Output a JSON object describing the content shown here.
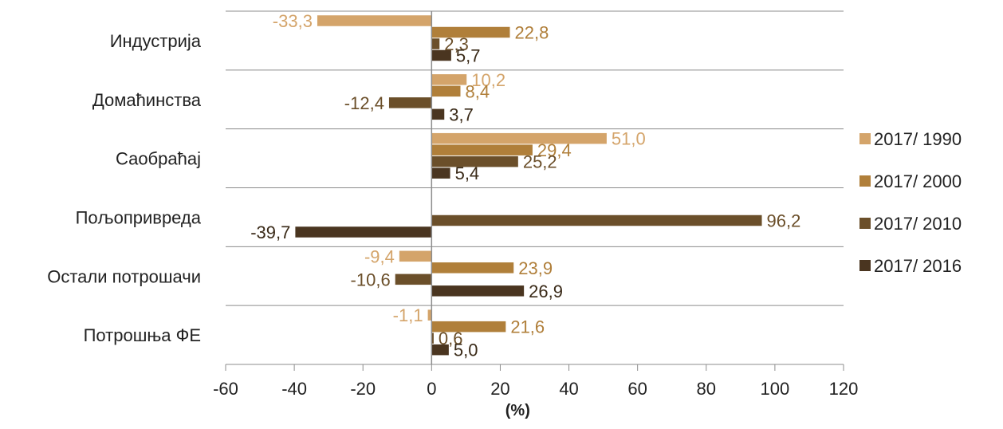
{
  "chart_data": {
    "type": "bar",
    "orientation": "horizontal",
    "categories": [
      "Индустрија",
      "Домаћинства",
      "Саобраћај",
      "Пољопривреда",
      "Остали потрошачи",
      "Потрошња ФЕ"
    ],
    "series": [
      {
        "name": "2017/ 1990",
        "color": "#d4a46a",
        "values": [
          -33.3,
          10.2,
          51.0,
          null,
          -9.4,
          -1.1
        ],
        "labels": [
          "-33,3",
          "10,2",
          "51,0",
          "",
          "-9,4",
          "-1,1"
        ]
      },
      {
        "name": "2017/ 2000",
        "color": "#b07f3a",
        "values": [
          22.8,
          8.4,
          29.4,
          null,
          23.9,
          21.6
        ],
        "labels": [
          "22,8",
          "8,4",
          "29,4",
          "",
          "23,9",
          "21,6"
        ]
      },
      {
        "name": "2017/ 2010",
        "color": "#6b4f2a",
        "values": [
          2.3,
          -12.4,
          25.2,
          96.2,
          -10.6,
          0.6
        ],
        "labels": [
          "2,3",
          "-12,4",
          "25,2",
          "96,2",
          "-10,6",
          "0,6"
        ]
      },
      {
        "name": "2017/ 2016",
        "color": "#4a3520",
        "values": [
          5.7,
          3.7,
          5.4,
          -39.7,
          26.9,
          5.0
        ],
        "labels": [
          "5,7",
          "3,7",
          "5,4",
          "-39,7",
          "26,9",
          "5,0"
        ]
      }
    ],
    "xlabel": "(%)",
    "xlim": [
      -60,
      120
    ],
    "xticks": [
      -60,
      -40,
      -20,
      0,
      20,
      40,
      60,
      80,
      100,
      120
    ],
    "xtick_labels": [
      "-60",
      "-40",
      "-20",
      "0",
      "20",
      "40",
      "60",
      "80",
      "100",
      "120"
    ],
    "grid": true,
    "legend_position": "right"
  }
}
